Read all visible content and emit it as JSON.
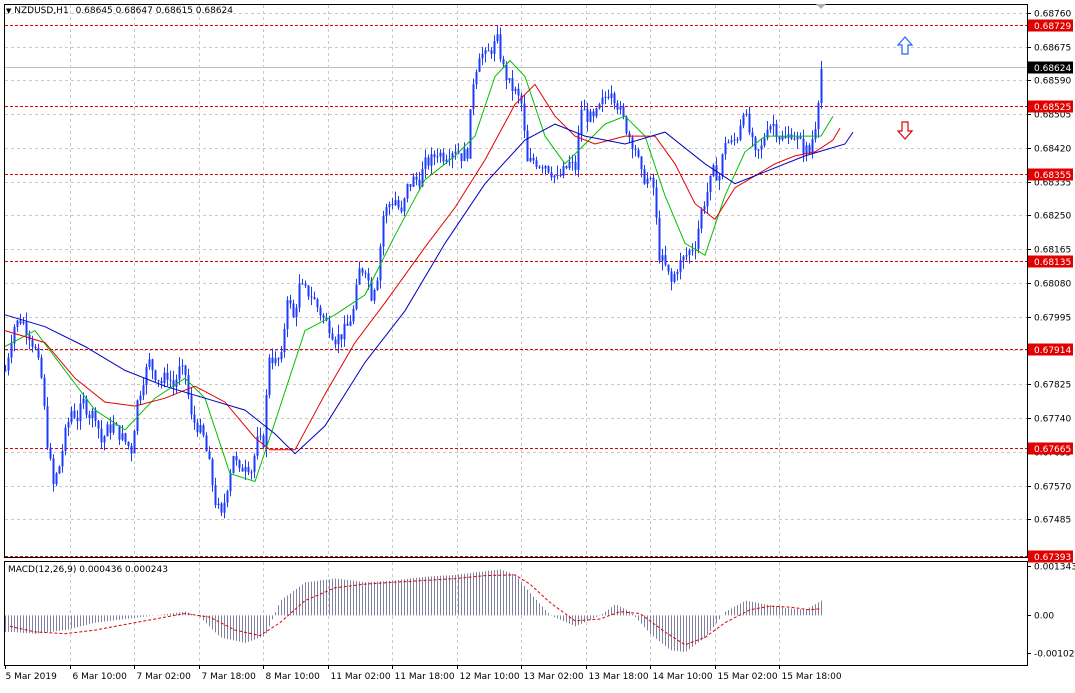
{
  "header": {
    "symbol": "NZDUSD,H1",
    "ohlc": "0.68645 0.68647 0.68615 0.68624"
  },
  "macd_header": {
    "label": "MACD(12,26,9)",
    "values": "0.000436 0.000243"
  },
  "colors": {
    "candle": "#1e3cff",
    "ma_fast": "#00c000",
    "ma_mid": "#e00000",
    "ma_slow": "#0000c0",
    "level_line": "#e00000",
    "grid": "#c8c8c8",
    "price_tag_bg": "#000000",
    "level_tag_bg": "#e00000",
    "arrow_up": "#1e64ff",
    "arrow_down": "#e00000",
    "macd_hist": "#8080a0",
    "macd_signal": "#e00000"
  },
  "icons": {
    "arrow_up": "up-arrow-outline-icon",
    "arrow_down": "down-arrow-outline-icon",
    "collapse": "triangle-down-icon"
  },
  "chart_data": {
    "type": "candlestick",
    "timeframe": "H1",
    "price_axis": {
      "ylim": [
        0.6739,
        0.6878
      ],
      "tick_labels": [
        "0.68760",
        "0.68675",
        "0.68590",
        "0.68505",
        "0.68420",
        "0.68335",
        "0.68250",
        "0.68165",
        "0.68080",
        "0.67995",
        "0.67910",
        "0.67825",
        "0.67740",
        "0.67655",
        "0.67570",
        "0.67485"
      ]
    },
    "time_axis": {
      "tick_labels": [
        "5 Mar 2019",
        "6 Mar 10:00",
        "7 Mar 02:00",
        "7 Mar 18:00",
        "8 Mar 10:00",
        "11 Mar 02:00",
        "11 Mar 18:00",
        "12 Mar 10:00",
        "13 Mar 02:00",
        "13 Mar 18:00",
        "14 Mar 10:00",
        "15 Mar 02:00",
        "15 Mar 18:00"
      ]
    },
    "current_price": "0.68624",
    "levels": [
      "0.68729",
      "0.68525",
      "0.68355",
      "0.68135",
      "0.67914",
      "0.67665",
      "0.67393"
    ],
    "price_path": [
      [
        0,
        0.6786
      ],
      [
        8,
        0.6797
      ],
      [
        16,
        0.6799
      ],
      [
        24,
        0.6795
      ],
      [
        30,
        0.6791
      ],
      [
        36,
        0.6784
      ],
      [
        42,
        0.6768
      ],
      [
        48,
        0.6757
      ],
      [
        54,
        0.6762
      ],
      [
        60,
        0.677
      ],
      [
        66,
        0.6776
      ],
      [
        72,
        0.6774
      ],
      [
        78,
        0.6778
      ],
      [
        84,
        0.6775
      ],
      [
        90,
        0.6775
      ],
      [
        96,
        0.6768
      ],
      [
        102,
        0.6771
      ],
      [
        108,
        0.6772
      ],
      [
        114,
        0.677
      ],
      [
        120,
        0.6768
      ],
      [
        126,
        0.6766
      ],
      [
        132,
        0.6778
      ],
      [
        138,
        0.6784
      ],
      [
        144,
        0.6788
      ],
      [
        150,
        0.6785
      ],
      [
        156,
        0.6783
      ],
      [
        162,
        0.6785
      ],
      [
        168,
        0.6782
      ],
      [
        174,
        0.6786
      ],
      [
        180,
        0.6785
      ],
      [
        186,
        0.6774
      ],
      [
        192,
        0.6772
      ],
      [
        198,
        0.6769
      ],
      [
        204,
        0.6762
      ],
      [
        210,
        0.6753
      ],
      [
        216,
        0.6749
      ],
      [
        222,
        0.6757
      ],
      [
        228,
        0.6765
      ],
      [
        234,
        0.676
      ],
      [
        240,
        0.6763
      ],
      [
        246,
        0.6761
      ],
      [
        252,
        0.6768
      ],
      [
        258,
        0.6768
      ],
      [
        264,
        0.679
      ],
      [
        270,
        0.6788
      ],
      [
        276,
        0.6789
      ],
      [
        282,
        0.6805
      ],
      [
        288,
        0.6799
      ],
      [
        294,
        0.6807
      ],
      [
        300,
        0.6806
      ],
      [
        306,
        0.6805
      ],
      [
        312,
        0.6802
      ],
      [
        318,
        0.6799
      ],
      [
        324,
        0.6797
      ],
      [
        330,
        0.6794
      ],
      [
        336,
        0.6795
      ],
      [
        342,
        0.6797
      ],
      [
        348,
        0.6801
      ],
      [
        354,
        0.6811
      ],
      [
        360,
        0.6812
      ],
      [
        366,
        0.6805
      ],
      [
        372,
        0.681
      ],
      [
        378,
        0.6825
      ],
      [
        384,
        0.6828
      ],
      [
        390,
        0.6829
      ],
      [
        396,
        0.6825
      ],
      [
        402,
        0.6832
      ],
      [
        408,
        0.6834
      ],
      [
        414,
        0.6834
      ],
      [
        420,
        0.6838
      ],
      [
        426,
        0.6839
      ],
      [
        432,
        0.6841
      ],
      [
        438,
        0.684
      ],
      [
        444,
        0.6841
      ],
      [
        450,
        0.6842
      ],
      [
        456,
        0.684
      ],
      [
        462,
        0.6841
      ],
      [
        468,
        0.6859
      ],
      [
        474,
        0.6866
      ],
      [
        480,
        0.6865
      ],
      [
        486,
        0.6867
      ],
      [
        492,
        0.6869
      ],
      [
        498,
        0.6862
      ],
      [
        504,
        0.6858
      ],
      [
        510,
        0.6856
      ],
      [
        516,
        0.6853
      ],
      [
        522,
        0.6838
      ],
      [
        528,
        0.6839
      ],
      [
        534,
        0.6838
      ],
      [
        540,
        0.6838
      ],
      [
        546,
        0.6836
      ],
      [
        552,
        0.6834
      ],
      [
        558,
        0.6836
      ],
      [
        564,
        0.6838
      ],
      [
        570,
        0.6837
      ],
      [
        576,
        0.6852
      ],
      [
        582,
        0.685
      ],
      [
        588,
        0.6849
      ],
      [
        594,
        0.6852
      ],
      [
        600,
        0.6855
      ],
      [
        606,
        0.6857
      ],
      [
        612,
        0.6853
      ],
      [
        618,
        0.6849
      ],
      [
        624,
        0.6845
      ],
      [
        630,
        0.6842
      ],
      [
        636,
        0.6835
      ],
      [
        642,
        0.6834
      ],
      [
        648,
        0.6832
      ],
      [
        654,
        0.6815
      ],
      [
        660,
        0.6812
      ],
      [
        666,
        0.6808
      ],
      [
        672,
        0.6812
      ],
      [
        678,
        0.6814
      ],
      [
        684,
        0.6816
      ],
      [
        690,
        0.6818
      ],
      [
        696,
        0.6826
      ],
      [
        702,
        0.6831
      ],
      [
        708,
        0.6836
      ],
      [
        714,
        0.6835
      ],
      [
        720,
        0.6844
      ],
      [
        726,
        0.6843
      ],
      [
        732,
        0.6845
      ],
      [
        738,
        0.6852
      ],
      [
        744,
        0.6846
      ],
      [
        750,
        0.684
      ],
      [
        756,
        0.6842
      ],
      [
        762,
        0.6848
      ],
      [
        768,
        0.6848
      ],
      [
        774,
        0.6845
      ],
      [
        780,
        0.6844
      ],
      [
        786,
        0.6846
      ],
      [
        792,
        0.6844
      ],
      [
        798,
        0.6842
      ],
      [
        804,
        0.6841
      ],
      [
        810,
        0.6848
      ],
      [
        816,
        0.6862
      ]
    ],
    "ma_fast": [
      [
        0,
        0.6792
      ],
      [
        30,
        0.6796
      ],
      [
        60,
        0.6786
      ],
      [
        90,
        0.6776
      ],
      [
        120,
        0.6771
      ],
      [
        150,
        0.6779
      ],
      [
        180,
        0.6784
      ],
      [
        200,
        0.6779
      ],
      [
        225,
        0.676
      ],
      [
        250,
        0.6758
      ],
      [
        270,
        0.6773
      ],
      [
        300,
        0.6796
      ],
      [
        330,
        0.68
      ],
      [
        360,
        0.6805
      ],
      [
        390,
        0.682
      ],
      [
        420,
        0.6834
      ],
      [
        450,
        0.684
      ],
      [
        470,
        0.6845
      ],
      [
        490,
        0.686
      ],
      [
        505,
        0.6864
      ],
      [
        520,
        0.686
      ],
      [
        540,
        0.6845
      ],
      [
        560,
        0.6838
      ],
      [
        580,
        0.6843
      ],
      [
        600,
        0.6848
      ],
      [
        620,
        0.685
      ],
      [
        640,
        0.6845
      ],
      [
        660,
        0.683
      ],
      [
        680,
        0.6818
      ],
      [
        700,
        0.6815
      ],
      [
        720,
        0.683
      ],
      [
        740,
        0.6841
      ],
      [
        760,
        0.6845
      ],
      [
        780,
        0.6845
      ],
      [
        800,
        0.6845
      ],
      [
        816,
        0.6845
      ],
      [
        828,
        0.685
      ]
    ],
    "ma_mid": [
      [
        0,
        0.6796
      ],
      [
        40,
        0.6793
      ],
      [
        70,
        0.6784
      ],
      [
        100,
        0.6778
      ],
      [
        130,
        0.6777
      ],
      [
        160,
        0.6779
      ],
      [
        190,
        0.6782
      ],
      [
        220,
        0.6778
      ],
      [
        250,
        0.6769
      ],
      [
        265,
        0.6766
      ],
      [
        290,
        0.6766
      ],
      [
        320,
        0.678
      ],
      [
        350,
        0.6793
      ],
      [
        380,
        0.6803
      ],
      [
        420,
        0.6817
      ],
      [
        450,
        0.6827
      ],
      [
        480,
        0.6839
      ],
      [
        510,
        0.6853
      ],
      [
        530,
        0.6858
      ],
      [
        550,
        0.685
      ],
      [
        570,
        0.6845
      ],
      [
        590,
        0.6843
      ],
      [
        620,
        0.6845
      ],
      [
        650,
        0.6845
      ],
      [
        670,
        0.6838
      ],
      [
        690,
        0.6828
      ],
      [
        710,
        0.6824
      ],
      [
        730,
        0.6832
      ],
      [
        750,
        0.6835
      ],
      [
        770,
        0.6838
      ],
      [
        790,
        0.684
      ],
      [
        810,
        0.6841
      ],
      [
        828,
        0.6844
      ],
      [
        835,
        0.6847
      ]
    ],
    "ma_slow": [
      [
        0,
        0.68
      ],
      [
        40,
        0.6797
      ],
      [
        80,
        0.6792
      ],
      [
        120,
        0.6786
      ],
      [
        160,
        0.6782
      ],
      [
        200,
        0.6779
      ],
      [
        240,
        0.6776
      ],
      [
        270,
        0.677
      ],
      [
        290,
        0.6765
      ],
      [
        320,
        0.6772
      ],
      [
        360,
        0.6788
      ],
      [
        400,
        0.6801
      ],
      [
        440,
        0.6818
      ],
      [
        480,
        0.6833
      ],
      [
        520,
        0.6844
      ],
      [
        550,
        0.6848
      ],
      [
        580,
        0.6845
      ],
      [
        620,
        0.6843
      ],
      [
        660,
        0.6846
      ],
      [
        700,
        0.6838
      ],
      [
        730,
        0.6833
      ],
      [
        760,
        0.6836
      ],
      [
        800,
        0.684
      ],
      [
        840,
        0.6843
      ],
      [
        848,
        0.6846
      ]
    ],
    "macd": {
      "ylim": [
        -0.00135,
        0.00145
      ],
      "tick_labels": [
        "0.001343",
        "0.00",
        "-0.001023"
      ],
      "histogram": [
        [
          5,
          -0.00045
        ],
        [
          30,
          -0.0005
        ],
        [
          60,
          -0.0004
        ],
        [
          90,
          -0.0002
        ],
        [
          120,
          -0.0001
        ],
        [
          150,
          0.0
        ],
        [
          180,
          0.0001
        ],
        [
          195,
          -5e-05
        ],
        [
          215,
          -0.0006
        ],
        [
          240,
          -0.00075
        ],
        [
          260,
          -0.00055
        ],
        [
          275,
          0.0004
        ],
        [
          300,
          0.0009
        ],
        [
          330,
          0.001
        ],
        [
          360,
          0.0009
        ],
        [
          390,
          0.00095
        ],
        [
          420,
          0.00105
        ],
        [
          450,
          0.0011
        ],
        [
          480,
          0.0012
        ],
        [
          495,
          0.00125
        ],
        [
          510,
          0.0011
        ],
        [
          525,
          0.0006
        ],
        [
          545,
          0.0
        ],
        [
          570,
          -0.0003
        ],
        [
          595,
          0.0
        ],
        [
          610,
          0.0003
        ],
        [
          625,
          0.0001
        ],
        [
          645,
          -0.0005
        ],
        [
          665,
          -0.00095
        ],
        [
          680,
          -0.001
        ],
        [
          700,
          -0.0006
        ],
        [
          720,
          0.0001
        ],
        [
          740,
          0.0004
        ],
        [
          760,
          0.0003
        ],
        [
          780,
          0.0002
        ],
        [
          800,
          0.00015
        ],
        [
          816,
          0.0004
        ]
      ],
      "signal": [
        [
          5,
          -0.0003
        ],
        [
          30,
          -0.00045
        ],
        [
          60,
          -0.0005
        ],
        [
          90,
          -0.0004
        ],
        [
          120,
          -0.00025
        ],
        [
          150,
          -0.0001
        ],
        [
          180,
          5e-05
        ],
        [
          205,
          -5e-05
        ],
        [
          230,
          -0.0004
        ],
        [
          255,
          -0.00055
        ],
        [
          275,
          -0.0002
        ],
        [
          300,
          0.0004
        ],
        [
          330,
          0.00075
        ],
        [
          360,
          0.00085
        ],
        [
          390,
          0.0009
        ],
        [
          420,
          0.00095
        ],
        [
          450,
          0.001
        ],
        [
          480,
          0.00108
        ],
        [
          510,
          0.0011
        ],
        [
          525,
          0.00085
        ],
        [
          545,
          0.00035
        ],
        [
          570,
          -0.00015
        ],
        [
          595,
          -0.0001
        ],
        [
          615,
          0.0001
        ],
        [
          635,
          5e-05
        ],
        [
          660,
          -0.00045
        ],
        [
          680,
          -0.0008
        ],
        [
          700,
          -0.0006
        ],
        [
          720,
          -0.0002
        ],
        [
          745,
          0.00015
        ],
        [
          765,
          0.00025
        ],
        [
          785,
          0.00022
        ],
        [
          805,
          0.00015
        ],
        [
          816,
          0.00018
        ]
      ]
    }
  }
}
